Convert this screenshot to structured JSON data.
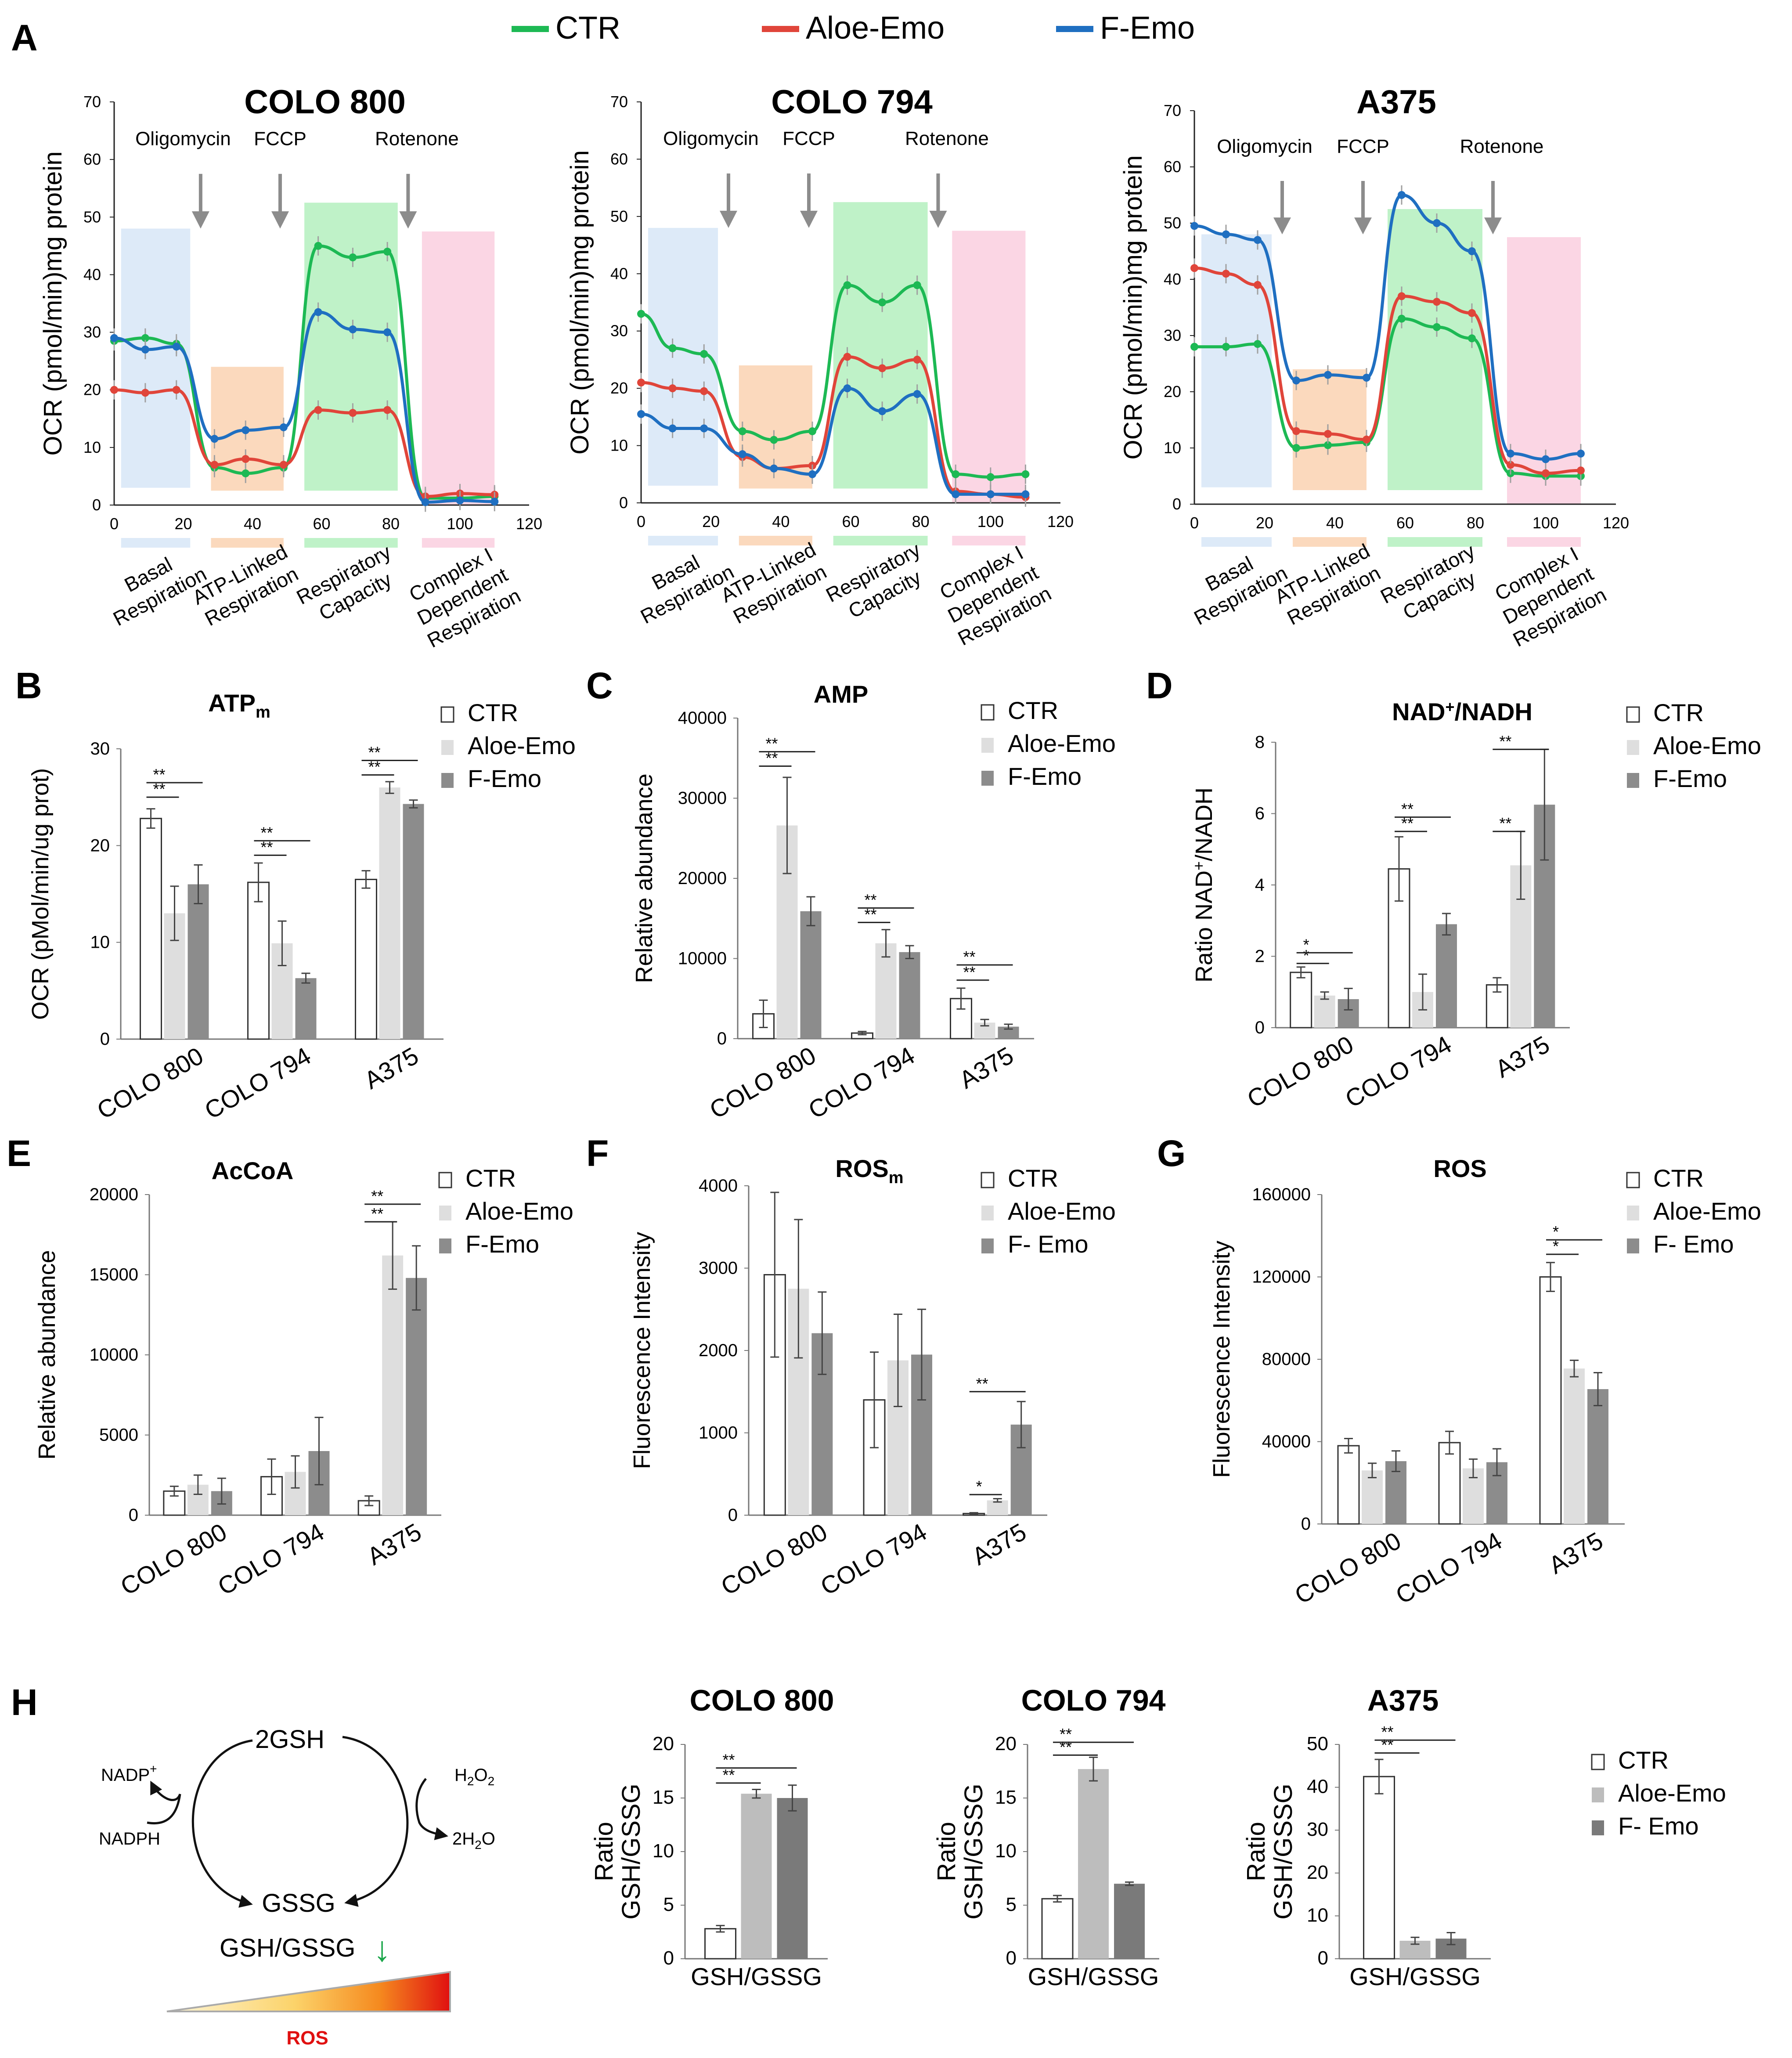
{
  "figure": {
    "legend_top": [
      {
        "label": "CTR",
        "color": "#1db954"
      },
      {
        "label": "Aloe-Emo",
        "color": "#e0453a"
      },
      {
        "label": "F-Emo",
        "color": "#1f6fc1"
      }
    ],
    "ocr_common": {
      "ylabel": "OCR (pmol/min)mg protein",
      "yticks": [
        0,
        10,
        20,
        30,
        40,
        50,
        60,
        70
      ],
      "xticks": [
        0,
        20,
        40,
        60,
        80,
        100,
        120
      ],
      "injections": [
        {
          "label": "Oligomycin",
          "x": 25
        },
        {
          "label": "FCCP",
          "x": 48
        },
        {
          "label": "Rotenone",
          "x": 85
        }
      ],
      "regions": [
        {
          "label": "Basal Respiration",
          "x0": 2,
          "x1": 22,
          "color": "#ddeaf8"
        },
        {
          "label": "ATP-Linked Respiration",
          "x0": 28,
          "x1": 49,
          "color": "#fbd9bd"
        },
        {
          "label": "Respiratory Capacity",
          "x0": 55,
          "x1": 82,
          "color": "#bff2c8"
        },
        {
          "label": "Complex I Dependent Respiration",
          "x0": 89,
          "x1": 110,
          "color": "#fbd6e4"
        }
      ],
      "xs": [
        0,
        9,
        18,
        29,
        38,
        49,
        59,
        69,
        79,
        90,
        100,
        110
      ]
    }
  },
  "chart_data": [
    {
      "panel": "A",
      "type": "line",
      "title": "COLO 800",
      "xlabel": "",
      "ylabel": "OCR (pmol/min)mg protein",
      "xlim": [
        0,
        120
      ],
      "ylim": [
        0,
        70
      ],
      "series": [
        {
          "name": "CTR",
          "values": [
            28.5,
            29,
            28,
            6.5,
            5.5,
            6.5,
            45,
            43,
            44,
            1.2,
            1.2,
            1.5
          ]
        },
        {
          "name": "Aloe-Emo",
          "values": [
            20,
            19.5,
            20,
            7,
            8,
            7,
            16.5,
            16,
            16.5,
            1.5,
            2,
            1.8
          ]
        },
        {
          "name": "F-Emo",
          "values": [
            29,
            27,
            27.5,
            11.5,
            13,
            13.5,
            33.5,
            30.5,
            30,
            0.5,
            0.8,
            0.6
          ]
        }
      ]
    },
    {
      "panel": "A",
      "type": "line",
      "title": "COLO 794",
      "xlabel": "",
      "ylabel": "OCR (pmol/min)mg protein",
      "xlim": [
        0,
        120
      ],
      "ylim": [
        0,
        70
      ],
      "series": [
        {
          "name": "CTR",
          "values": [
            33,
            27,
            26,
            12.5,
            11,
            12.5,
            38,
            35,
            38,
            5,
            4.5,
            5
          ]
        },
        {
          "name": "Aloe-Emo",
          "values": [
            21,
            20,
            19.5,
            8,
            6,
            6.5,
            25.5,
            23.5,
            25,
            2,
            1.5,
            1
          ]
        },
        {
          "name": "F-Emo",
          "values": [
            15.5,
            13,
            13,
            8.5,
            6,
            5,
            20,
            16,
            19,
            1.5,
            1.5,
            1.5
          ]
        }
      ]
    },
    {
      "panel": "A",
      "type": "line",
      "title": "A375",
      "xlabel": "",
      "ylabel": "OCR (pmol/min)mg protein",
      "xlim": [
        0,
        120
      ],
      "ylim": [
        0,
        70
      ],
      "series": [
        {
          "name": "CTR",
          "values": [
            28,
            28,
            28.5,
            10,
            10.5,
            11,
            33,
            31.5,
            29.5,
            5.5,
            5,
            5
          ]
        },
        {
          "name": "Aloe-Emo",
          "values": [
            42,
            41,
            39,
            13,
            12.5,
            11.5,
            37,
            36,
            34,
            7,
            5.5,
            6
          ]
        },
        {
          "name": "F-Emo",
          "values": [
            49.5,
            48,
            47,
            22,
            23,
            22.5,
            55,
            50,
            45,
            9,
            8,
            9
          ]
        }
      ]
    },
    {
      "panel": "B",
      "type": "bar",
      "title": "ATPm",
      "title_main": "ATP",
      "title_sub": "m",
      "ylabel": "OCR (pMol/min/ug prot)",
      "ylim": [
        0,
        30
      ],
      "yticks": [
        0,
        10,
        20,
        30
      ],
      "categories": [
        "COLO 800",
        "COLO 794",
        "A375"
      ],
      "legend": [
        "CTR",
        "Aloe-Emo",
        "F-Emo"
      ],
      "series": [
        {
          "name": "CTR",
          "values": [
            22.8,
            16.2,
            16.5
          ],
          "errors": [
            1.0,
            2.0,
            0.9
          ]
        },
        {
          "name": "Aloe-Emo",
          "values": [
            13.0,
            9.9,
            26.0
          ],
          "errors": [
            2.8,
            2.3,
            0.6
          ]
        },
        {
          "name": "F-Emo",
          "values": [
            16.0,
            6.3,
            24.3
          ],
          "errors": [
            2.0,
            0.5,
            0.4
          ]
        }
      ],
      "sig": [
        {
          "cat": 0,
          "a": 0,
          "b": 1,
          "label": "**",
          "y": 25.0
        },
        {
          "cat": 0,
          "a": 0,
          "b": 2,
          "label": "**",
          "y": 26.5
        },
        {
          "cat": 1,
          "a": 0,
          "b": 1,
          "label": "**",
          "y": 19.0
        },
        {
          "cat": 1,
          "a": 0,
          "b": 2,
          "label": "**",
          "y": 20.5
        },
        {
          "cat": 2,
          "a": 0,
          "b": 1,
          "label": "**",
          "y": 27.3
        },
        {
          "cat": 2,
          "a": 0,
          "b": 2,
          "label": "**",
          "y": 28.8
        }
      ]
    },
    {
      "panel": "C",
      "type": "bar",
      "title": "AMP",
      "ylabel": "Relative abundance",
      "ylim": [
        0,
        40000
      ],
      "yticks": [
        0,
        10000,
        20000,
        30000,
        40000
      ],
      "categories": [
        "COLO 800",
        "COLO 794",
        "A375"
      ],
      "legend": [
        "CTR",
        "Aloe-Emo",
        "F-Emo"
      ],
      "series": [
        {
          "name": "CTR",
          "values": [
            3100,
            700,
            5000
          ],
          "errors": [
            1700,
            200,
            1300
          ]
        },
        {
          "name": "Aloe-Emo",
          "values": [
            26600,
            11900,
            2000
          ],
          "errors": [
            6000,
            1700,
            400
          ]
        },
        {
          "name": "F-Emo",
          "values": [
            15900,
            10800,
            1500
          ],
          "errors": [
            1800,
            800,
            300
          ]
        }
      ],
      "sig": [
        {
          "cat": 0,
          "a": 0,
          "b": 1,
          "label": "**",
          "y": 34000
        },
        {
          "cat": 0,
          "a": 0,
          "b": 2,
          "label": "**",
          "y": 35800
        },
        {
          "cat": 1,
          "a": 0,
          "b": 1,
          "label": "**",
          "y": 14500
        },
        {
          "cat": 1,
          "a": 0,
          "b": 2,
          "label": "**",
          "y": 16300
        },
        {
          "cat": 2,
          "a": 0,
          "b": 1,
          "label": "**",
          "y": 7300
        },
        {
          "cat": 2,
          "a": 0,
          "b": 2,
          "label": "**",
          "y": 9200
        }
      ]
    },
    {
      "panel": "D",
      "type": "bar",
      "title": "NAD+/NADH",
      "title_parts": [
        "NAD",
        "+",
        "/NADH"
      ],
      "ylabel": "Ratio NAD+/NADH",
      "ylabel_parts": [
        "Ratio NAD",
        "+",
        "/NADH"
      ],
      "ylim": [
        0,
        8
      ],
      "yticks": [
        0,
        2,
        4,
        6,
        8
      ],
      "categories": [
        "COLO 800",
        "COLO 794",
        "A375"
      ],
      "legend": [
        "CTR",
        "Aloe-Emo",
        "F-Emo"
      ],
      "series": [
        {
          "name": "CTR",
          "values": [
            1.55,
            4.45,
            1.2
          ],
          "errors": [
            0.15,
            0.9,
            0.2
          ]
        },
        {
          "name": "Aloe-Emo",
          "values": [
            0.9,
            1.0,
            4.55
          ],
          "errors": [
            0.1,
            0.5,
            0.95
          ]
        },
        {
          "name": "F-Emo",
          "values": [
            0.8,
            2.9,
            6.25
          ],
          "errors": [
            0.3,
            0.3,
            1.55
          ]
        }
      ],
      "sig": [
        {
          "cat": 0,
          "a": 0,
          "b": 1,
          "label": "*",
          "y": 1.8
        },
        {
          "cat": 0,
          "a": 0,
          "b": 2,
          "label": "*",
          "y": 2.1
        },
        {
          "cat": 1,
          "a": 0,
          "b": 1,
          "label": "**",
          "y": 5.5
        },
        {
          "cat": 1,
          "a": 0,
          "b": 2,
          "label": "**",
          "y": 5.9
        },
        {
          "cat": 2,
          "a": 0,
          "b": 1,
          "label": "**",
          "y": 5.5
        },
        {
          "cat": 2,
          "a": 0,
          "b": 2,
          "label": "**",
          "y": 7.8
        }
      ]
    },
    {
      "panel": "E",
      "type": "bar",
      "title": "AcCoA",
      "ylabel": "Relative abundance",
      "ylim": [
        0,
        20000
      ],
      "yticks": [
        0,
        5000,
        10000,
        15000,
        20000
      ],
      "categories": [
        "COLO 800",
        "COLO 794",
        "A375"
      ],
      "legend": [
        "CTR",
        "Aloe-Emo",
        "F-Emo"
      ],
      "series": [
        {
          "name": "CTR",
          "values": [
            1500,
            2400,
            900
          ],
          "errors": [
            300,
            1100,
            300
          ]
        },
        {
          "name": "Aloe-Emo",
          "values": [
            1900,
            2700,
            16200
          ],
          "errors": [
            600,
            1000,
            2100
          ]
        },
        {
          "name": "F-Emo",
          "values": [
            1500,
            4000,
            14800
          ],
          "errors": [
            800,
            2100,
            2000
          ]
        }
      ],
      "sig": [
        {
          "cat": 2,
          "a": 0,
          "b": 1,
          "label": "**",
          "y": 18300
        },
        {
          "cat": 2,
          "a": 0,
          "b": 2,
          "label": "**",
          "y": 19400
        }
      ]
    },
    {
      "panel": "F",
      "type": "bar",
      "title": "ROSm",
      "title_main": "ROS",
      "title_sub": "m",
      "ylabel": "Fluorescence Intensity",
      "ylim": [
        0,
        4000
      ],
      "yticks": [
        0,
        1000,
        2000,
        3000,
        4000
      ],
      "categories": [
        "COLO 800",
        "COLO 794",
        "A375"
      ],
      "legend": [
        "CTR",
        "Aloe-Emo",
        "F- Emo"
      ],
      "series": [
        {
          "name": "CTR",
          "values": [
            2920,
            1400,
            20
          ],
          "errors": [
            1000,
            580,
            10
          ]
        },
        {
          "name": "Aloe-Emo",
          "values": [
            2750,
            1880,
            180
          ],
          "errors": [
            840,
            560,
            20
          ]
        },
        {
          "name": "F- Emo",
          "values": [
            2210,
            1950,
            1100
          ],
          "errors": [
            500,
            550,
            280
          ]
        }
      ],
      "sig": [
        {
          "cat": 2,
          "a": 0,
          "b": 1,
          "label": "*",
          "y": 250
        },
        {
          "cat": 2,
          "a": 0,
          "b": 2,
          "label": "**",
          "y": 1500
        }
      ]
    },
    {
      "panel": "G",
      "type": "bar",
      "title": "ROS",
      "ylabel": "Fluorescence Intensity",
      "ylim": [
        0,
        160000
      ],
      "yticks": [
        0,
        40000,
        80000,
        120000,
        160000
      ],
      "categories": [
        "COLO 800",
        "COLO 794",
        "A375"
      ],
      "legend": [
        "CTR",
        "Aloe-Emo",
        "F- Emo"
      ],
      "series": [
        {
          "name": "CTR",
          "values": [
            38000,
            39500,
            120000
          ],
          "errors": [
            3500,
            5500,
            7000
          ]
        },
        {
          "name": "Aloe-Emo",
          "values": [
            26000,
            27000,
            75500
          ],
          "errors": [
            3500,
            4500,
            4000
          ]
        },
        {
          "name": "F- Emo",
          "values": [
            30500,
            30000,
            65500
          ],
          "errors": [
            5000,
            6500,
            8000
          ]
        }
      ],
      "sig": [
        {
          "cat": 2,
          "a": 0,
          "b": 1,
          "label": "*",
          "y": 131000
        },
        {
          "cat": 2,
          "a": 0,
          "b": 2,
          "label": "*",
          "y": 138000
        }
      ]
    },
    {
      "panel": "H",
      "type": "bar",
      "title": "COLO 800",
      "ylabel": "Ratio GSH/GSSG",
      "ylabel_lines": [
        "Ratio",
        "GSH/GSSG"
      ],
      "ylim": [
        0,
        20
      ],
      "yticks": [
        0,
        5,
        10,
        15,
        20
      ],
      "categories": [
        "GSH/GSSG"
      ],
      "series": [
        {
          "name": "CTR",
          "values": [
            2.8
          ],
          "errors": [
            0.3
          ]
        },
        {
          "name": "Aloe-Emo",
          "values": [
            15.4
          ],
          "errors": [
            0.4
          ]
        },
        {
          "name": "F- Emo",
          "values": [
            15.0
          ],
          "errors": [
            1.2
          ]
        }
      ],
      "sig": [
        {
          "cat": 0,
          "a": 0,
          "b": 1,
          "label": "**",
          "y": 16.4
        },
        {
          "cat": 0,
          "a": 0,
          "b": 2,
          "label": "**",
          "y": 17.8
        }
      ]
    },
    {
      "panel": "H",
      "type": "bar",
      "title": "COLO 794",
      "ylabel": "Ratio GSH/GSSG",
      "ylabel_lines": [
        "Ratio",
        "GSH/GSSG"
      ],
      "ylim": [
        0,
        20
      ],
      "yticks": [
        0,
        5,
        10,
        15,
        20
      ],
      "categories": [
        "GSH/GSSG"
      ],
      "series": [
        {
          "name": "CTR",
          "values": [
            5.6
          ],
          "errors": [
            0.3
          ]
        },
        {
          "name": "Aloe-Emo",
          "values": [
            17.7
          ],
          "errors": [
            1.1
          ]
        },
        {
          "name": "F- Emo",
          "values": [
            7.0
          ],
          "errors": [
            0.15
          ]
        }
      ],
      "sig": [
        {
          "cat": 0,
          "a": 0,
          "b": 1,
          "label": "**",
          "y": 19.0
        },
        {
          "cat": 0,
          "a": 0,
          "b": 2,
          "label": "**",
          "y": 20.2
        }
      ]
    },
    {
      "panel": "H",
      "type": "bar",
      "title": "A375",
      "ylabel": "Ratio GSH/GSSG",
      "ylabel_lines": [
        "Ratio",
        "GSH/GSSG"
      ],
      "ylim": [
        0,
        50
      ],
      "yticks": [
        0,
        10,
        20,
        30,
        40,
        50
      ],
      "categories": [
        "GSH/GSSG"
      ],
      "legend": [
        "CTR",
        "Aloe-Emo",
        "F- Emo"
      ],
      "series": [
        {
          "name": "CTR",
          "values": [
            42.5
          ],
          "errors": [
            4.0
          ]
        },
        {
          "name": "Aloe-Emo",
          "values": [
            4.2
          ],
          "errors": [
            0.8
          ]
        },
        {
          "name": "F- Emo",
          "values": [
            4.7
          ],
          "errors": [
            1.4
          ]
        }
      ],
      "sig": [
        {
          "cat": 0,
          "a": 0,
          "b": 1,
          "label": "**",
          "y": 48.0
        },
        {
          "cat": 0,
          "a": 0,
          "b": 2,
          "label": "**",
          "y": 51.0
        }
      ]
    }
  ],
  "panel_letters": [
    "A",
    "B",
    "C",
    "D",
    "E",
    "F",
    "G",
    "H"
  ],
  "schematic": {
    "top": "2GSH",
    "bottom": "GSSG",
    "left_top": "NADP+",
    "left_bottom": "NADPH",
    "right_top": "H2O2",
    "right_bottom": "2H2O",
    "ratio": "GSH/GSSG",
    "ros": "ROS"
  },
  "colors": {
    "ctr": "#1db954",
    "aloe": "#e0453a",
    "femo": "#1f6fc1",
    "bar_ctr": "#ffffff",
    "bar_aloe": "#dedede",
    "bar_femo": "#8c8c8c",
    "bar_aloe_h": "#bdbdbd",
    "bar_femo_h": "#7a7a7a"
  }
}
